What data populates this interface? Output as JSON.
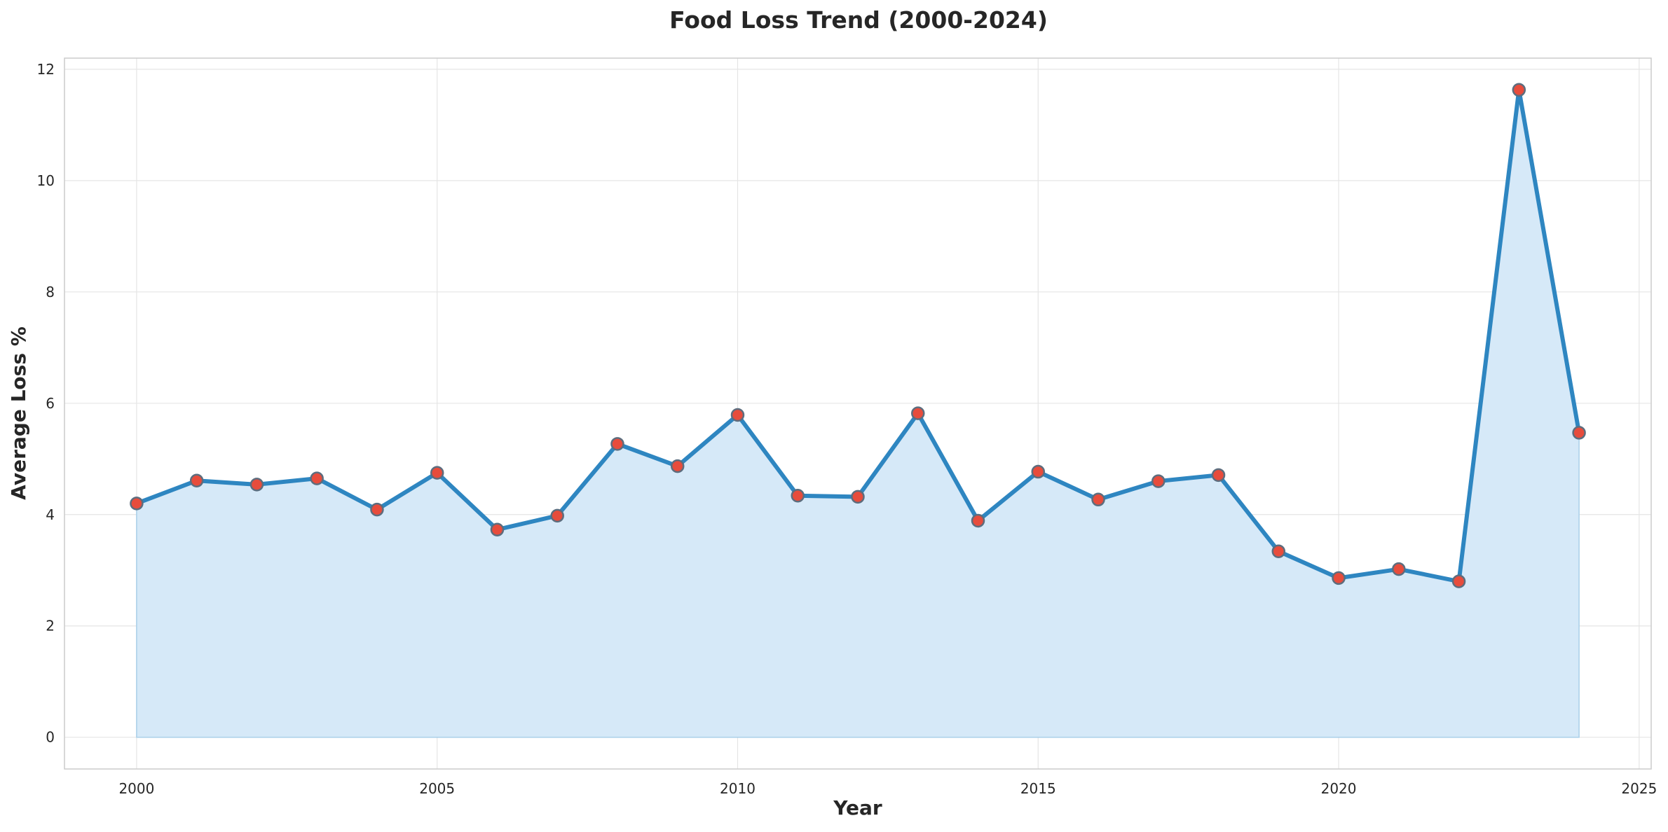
{
  "chart_data": {
    "type": "area",
    "title": "Food Loss Trend (2000-2024)",
    "xlabel": "Year",
    "ylabel": "Average Loss %",
    "xlim": [
      1998.8,
      2025.2
    ],
    "ylim": [
      -0.57,
      12.2
    ],
    "xticks": [
      2000,
      2005,
      2010,
      2015,
      2020,
      2025
    ],
    "yticks": [
      0,
      2,
      4,
      6,
      8,
      10,
      12
    ],
    "grid": true,
    "legend": "none",
    "colors": {
      "line": "#2e86c1",
      "fill": "#d6e9f8",
      "marker_fill": "#e74c3c",
      "marker_edge": "#5d6d7e"
    },
    "series": [
      {
        "x": [
          2000,
          2001,
          2002,
          2003,
          2004,
          2005,
          2006,
          2007,
          2008,
          2009,
          2010,
          2011,
          2012,
          2013,
          2014,
          2015,
          2016,
          2017,
          2018,
          2019,
          2020,
          2021,
          2022,
          2023,
          2024
        ],
        "y": [
          4.2,
          4.61,
          4.54,
          4.65,
          4.09,
          4.75,
          3.73,
          3.98,
          5.27,
          4.87,
          5.79,
          4.34,
          4.32,
          5.82,
          3.89,
          4.77,
          4.27,
          4.6,
          4.71,
          3.34,
          2.86,
          3.02,
          2.8,
          11.63,
          5.47
        ]
      }
    ]
  }
}
